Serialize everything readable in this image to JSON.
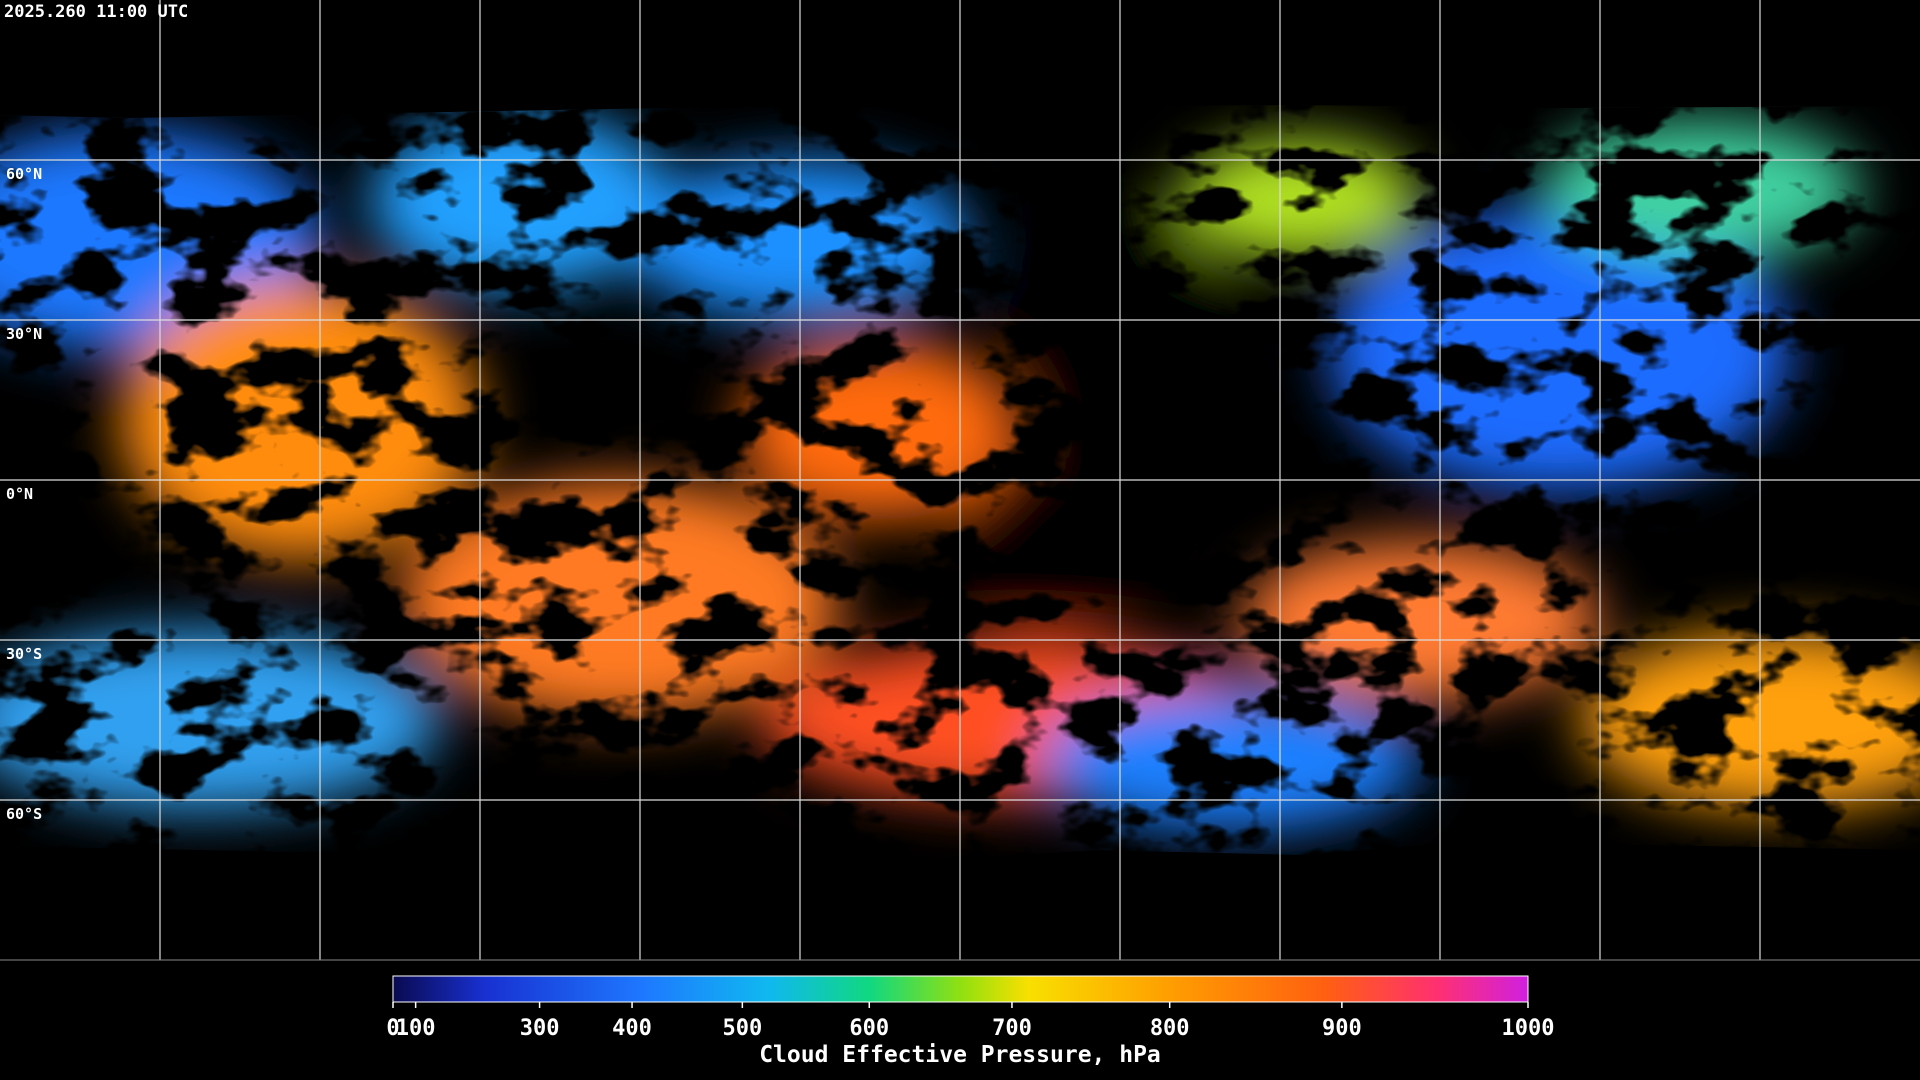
{
  "header": {
    "timestamp": "2025.260 11:00 UTC"
  },
  "map": {
    "latitude_labels": [
      "60°N",
      "30°N",
      "0°N",
      "30°S",
      "60°S"
    ]
  },
  "colorbar": {
    "title": "Cloud Effective Pressure, hPa",
    "lim": [
      0,
      1000
    ],
    "ticks": [
      0,
      100,
      300,
      400,
      500,
      600,
      700,
      800,
      900,
      1000
    ],
    "scale": "power",
    "exponent": 1.7
  }
}
